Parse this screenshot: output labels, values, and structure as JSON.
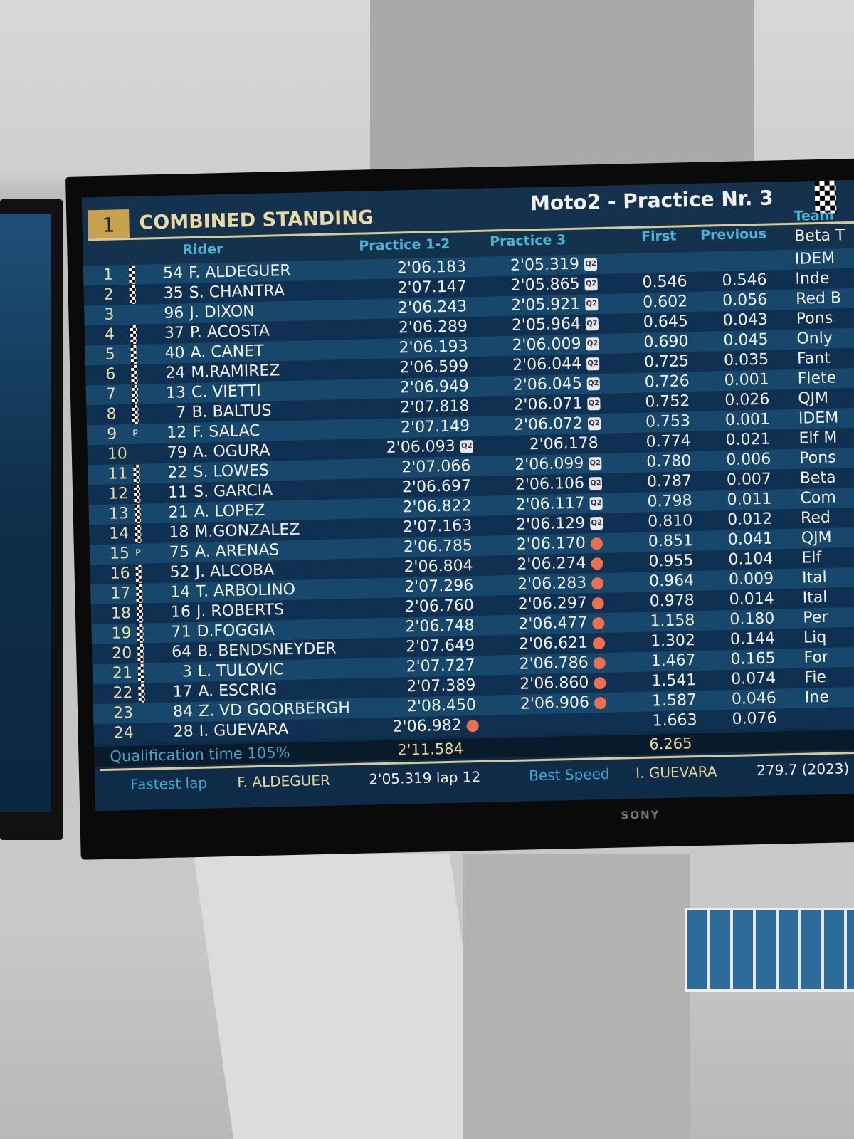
{
  "header": {
    "position": "1",
    "title": "COMBINED STANDING",
    "session": "Moto2 - Practice Nr. 3"
  },
  "columns": {
    "rider": "Rider",
    "p12": "Practice 1-2",
    "p3": "Practice 3",
    "first": "First",
    "previous": "Previous",
    "team": "Team"
  },
  "team_top": "Beta T",
  "rows": [
    {
      "pos": "1",
      "flag": "checkered",
      "num": "54",
      "name": "F. ALDEGUER",
      "p12": "2'06.183",
      "p3": "2'05.319",
      "p3_icon": "q2",
      "first": "",
      "prev": "",
      "team": "IDEM"
    },
    {
      "pos": "2",
      "flag": "checkered",
      "num": "35",
      "name": "S. CHANTRA",
      "p12": "2'07.147",
      "p3": "2'05.865",
      "p3_icon": "q2",
      "first": "0.546",
      "prev": "0.546",
      "team": "Inde"
    },
    {
      "pos": "3",
      "flag": "",
      "num": "96",
      "name": "J. DIXON",
      "p12": "2'06.243",
      "p3": "2'05.921",
      "p3_icon": "q2",
      "first": "0.602",
      "prev": "0.056",
      "team": "Red B"
    },
    {
      "pos": "4",
      "flag": "checkered",
      "num": "37",
      "name": "P. ACOSTA",
      "p12": "2'06.289",
      "p3": "2'05.964",
      "p3_icon": "q2",
      "first": "0.645",
      "prev": "0.043",
      "team": "Pons"
    },
    {
      "pos": "5",
      "flag": "checkered",
      "num": "40",
      "name": "A. CANET",
      "p12": "2'06.193",
      "p3": "2'06.009",
      "p3_icon": "q2",
      "first": "0.690",
      "prev": "0.045",
      "team": "Only"
    },
    {
      "pos": "6",
      "flag": "checkered",
      "num": "24",
      "name": "M.RAMIREZ",
      "p12": "2'06.599",
      "p3": "2'06.044",
      "p3_icon": "q2",
      "first": "0.725",
      "prev": "0.035",
      "team": "Fant"
    },
    {
      "pos": "7",
      "flag": "checkered",
      "num": "13",
      "name": "C. VIETTI",
      "p12": "2'06.949",
      "p3": "2'06.045",
      "p3_icon": "q2",
      "first": "0.726",
      "prev": "0.001",
      "team": "Flete"
    },
    {
      "pos": "8",
      "flag": "checkered",
      "num": "7",
      "name": "B. BALTUS",
      "p12": "2'07.818",
      "p3": "2'06.071",
      "p3_icon": "q2",
      "first": "0.752",
      "prev": "0.026",
      "team": "QJM"
    },
    {
      "pos": "9",
      "flag": "P",
      "num": "12",
      "name": "F. SALAC",
      "p12": "2'07.149",
      "p3": "2'06.072",
      "p3_icon": "q2",
      "first": "0.753",
      "prev": "0.001",
      "team": "IDEM"
    },
    {
      "pos": "10",
      "flag": "",
      "num": "79",
      "name": "A. OGURA",
      "p12": "2'06.093",
      "p12_icon": "q2",
      "p3": "2'06.178",
      "p3_icon": "",
      "first": "0.774",
      "prev": "0.021",
      "team": "Elf M"
    },
    {
      "pos": "11",
      "flag": "checkered",
      "num": "22",
      "name": "S. LOWES",
      "p12": "2'07.066",
      "p3": "2'06.099",
      "p3_icon": "q2",
      "first": "0.780",
      "prev": "0.006",
      "team": "Pons"
    },
    {
      "pos": "12",
      "flag": "checkered",
      "num": "11",
      "name": "S. GARCIA",
      "p12": "2'06.697",
      "p3": "2'06.106",
      "p3_icon": "q2",
      "first": "0.787",
      "prev": "0.007",
      "team": "Beta"
    },
    {
      "pos": "13",
      "flag": "checkered",
      "num": "21",
      "name": "A. LOPEZ",
      "p12": "2'06.822",
      "p3": "2'06.117",
      "p3_icon": "q2",
      "first": "0.798",
      "prev": "0.011",
      "team": "Com"
    },
    {
      "pos": "14",
      "flag": "checkered",
      "num": "18",
      "name": "M.GONZALEZ",
      "p12": "2'07.163",
      "p3": "2'06.129",
      "p3_icon": "q2",
      "first": "0.810",
      "prev": "0.012",
      "team": "Red"
    },
    {
      "pos": "15",
      "flag": "P",
      "num": "75",
      "name": "A. ARENAS",
      "p12": "2'06.785",
      "p3": "2'06.170",
      "p3_icon": "dot",
      "first": "0.851",
      "prev": "0.041",
      "team": "QJM"
    },
    {
      "pos": "16",
      "flag": "checkered",
      "num": "52",
      "name": "J. ALCOBA",
      "p12": "2'06.804",
      "p3": "2'06.274",
      "p3_icon": "dot",
      "first": "0.955",
      "prev": "0.104",
      "team": "Elf"
    },
    {
      "pos": "17",
      "flag": "checkered",
      "num": "14",
      "name": "T. ARBOLINO",
      "p12": "2'07.296",
      "p3": "2'06.283",
      "p3_icon": "dot",
      "first": "0.964",
      "prev": "0.009",
      "team": "Ital"
    },
    {
      "pos": "18",
      "flag": "checkered",
      "num": "16",
      "name": "J. ROBERTS",
      "p12": "2'06.760",
      "p3": "2'06.297",
      "p3_icon": "dot",
      "first": "0.978",
      "prev": "0.014",
      "team": "Ital"
    },
    {
      "pos": "19",
      "flag": "checkered",
      "num": "71",
      "name": "D.FOGGIA",
      "p12": "2'06.748",
      "p3": "2'06.477",
      "p3_icon": "dot",
      "first": "1.158",
      "prev": "0.180",
      "team": "Per"
    },
    {
      "pos": "20",
      "flag": "checkered",
      "num": "64",
      "name": "B. BENDSNEYDER",
      "p12": "2'07.649",
      "p3": "2'06.621",
      "p3_icon": "dot",
      "first": "1.302",
      "prev": "0.144",
      "team": "Liq"
    },
    {
      "pos": "21",
      "flag": "checkered",
      "num": "3",
      "name": "L. TULOVIC",
      "p12": "2'07.727",
      "p3": "2'06.786",
      "p3_icon": "dot",
      "first": "1.467",
      "prev": "0.165",
      "team": "For"
    },
    {
      "pos": "22",
      "flag": "checkered",
      "num": "17",
      "name": "A. ESCRIG",
      "p12": "2'07.389",
      "p3": "2'06.860",
      "p3_icon": "dot",
      "first": "1.541",
      "prev": "0.074",
      "team": "Fie"
    },
    {
      "pos": "23",
      "flag": "",
      "num": "84",
      "name": "Z. VD GOORBERGH",
      "p12": "2'08.450",
      "p3": "2'06.906",
      "p3_icon": "dot",
      "first": "1.587",
      "prev": "0.046",
      "team": "Ine"
    },
    {
      "pos": "24",
      "flag": "",
      "num": "28",
      "name": "I. GUEVARA",
      "p12": "2'06.982",
      "p12_icon": "dot",
      "p3": "",
      "p3_icon": "",
      "first": "1.663",
      "prev": "0.076",
      "team": ""
    }
  ],
  "footer": {
    "qual_label": "Qualification time 105%",
    "qual_time": "2'11.584",
    "gap_total": "6.265",
    "fastest_label": "Fastest lap",
    "fastest_rider": "F. ALDEGUER",
    "fastest_time": "2'05.319 lap 12",
    "speed_label": "Best Speed",
    "speed_rider": "I. GUEVARA",
    "speed_value": "279.7 (2023)"
  },
  "q2_badge": "Q2",
  "tv_brand": "SONY",
  "colors": {
    "accent_gold": "#c9a14e",
    "header_blue": "#4fb3d3",
    "dot": "#ec6f50"
  }
}
